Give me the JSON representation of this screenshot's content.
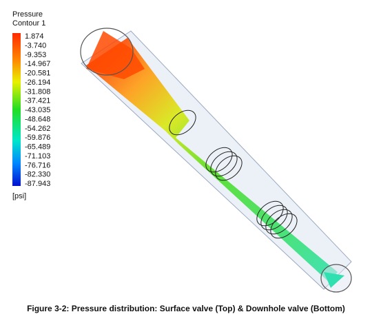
{
  "legend": {
    "title": "Pressure",
    "subtitle": "Contour 1",
    "ticks": [
      "1.874",
      "-3.740",
      "-9.353",
      "-14.967",
      "-20.581",
      "-26.194",
      "-31.808",
      "-37.421",
      "-43.035",
      "-48.648",
      "-54.262",
      "-59.876",
      "-65.489",
      "-71.103",
      "-76.716",
      "-82.330",
      "-87.943"
    ],
    "unit": "[psi]"
  },
  "caption": "Figure 3-2: Pressure distribution: Surface valve (Top) & Downhole valve (Bottom)"
}
